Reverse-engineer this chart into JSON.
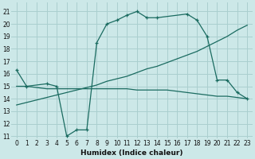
{
  "xlabel": "Humidex (Indice chaleur)",
  "bg_color": "#cce8e8",
  "grid_color": "#aacfcf",
  "line_color": "#1a6b60",
  "xlim": [
    -0.5,
    23.5
  ],
  "ylim": [
    10.8,
    21.7
  ],
  "yticks": [
    11,
    12,
    13,
    14,
    15,
    16,
    17,
    18,
    19,
    20,
    21
  ],
  "xticks": [
    0,
    1,
    2,
    3,
    4,
    5,
    6,
    7,
    8,
    9,
    10,
    11,
    12,
    13,
    14,
    15,
    16,
    17,
    18,
    19,
    20,
    21,
    22,
    23
  ],
  "line1_x": [
    0,
    1,
    3,
    4,
    5,
    6,
    7,
    8,
    9,
    10,
    11,
    12,
    13,
    14,
    17,
    18,
    19,
    20,
    21,
    22,
    23
  ],
  "line1_y": [
    16.3,
    15.0,
    15.2,
    15.0,
    11.0,
    11.5,
    11.5,
    18.5,
    20.0,
    20.3,
    20.7,
    21.0,
    20.5,
    20.5,
    20.8,
    20.3,
    19.0,
    15.5,
    15.5,
    14.5,
    14.0
  ],
  "line2_x": [
    0,
    1,
    2,
    3,
    4,
    5,
    6,
    7,
    8,
    9,
    10,
    11,
    12,
    13,
    14,
    15,
    16,
    17,
    18,
    19,
    20,
    21,
    22,
    23
  ],
  "line2_y": [
    15.0,
    15.0,
    14.9,
    14.8,
    14.8,
    14.8,
    14.8,
    14.8,
    14.8,
    14.8,
    14.8,
    14.8,
    14.7,
    14.7,
    14.7,
    14.7,
    14.6,
    14.5,
    14.4,
    14.3,
    14.2,
    14.2,
    14.1,
    14.0
  ],
  "line3_x": [
    0,
    1,
    2,
    3,
    4,
    5,
    6,
    7,
    8,
    9,
    10,
    11,
    12,
    13,
    14,
    15,
    16,
    17,
    18,
    19,
    20,
    21,
    22,
    23
  ],
  "line3_y": [
    13.5,
    13.7,
    13.9,
    14.1,
    14.3,
    14.5,
    14.7,
    14.9,
    15.1,
    15.4,
    15.6,
    15.8,
    16.1,
    16.4,
    16.6,
    16.9,
    17.2,
    17.5,
    17.8,
    18.2,
    18.6,
    19.0,
    19.5,
    19.9
  ]
}
